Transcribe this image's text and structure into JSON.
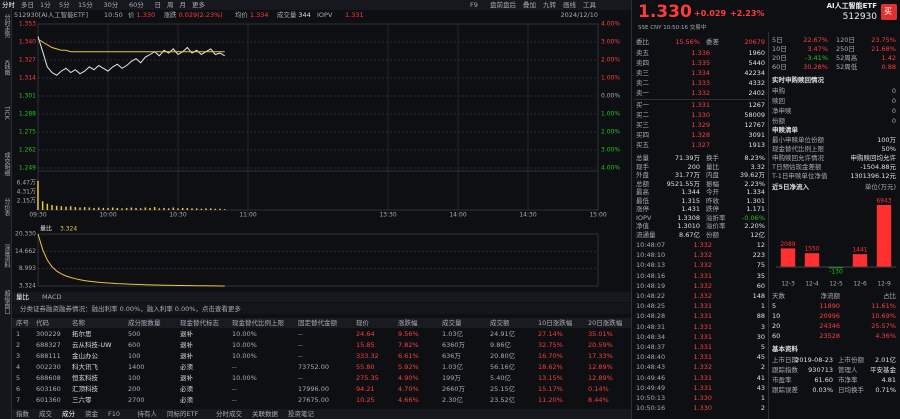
{
  "toolbar": {
    "tabs": [
      "分时",
      "多日",
      "1分",
      "5分",
      "15分",
      "30分",
      "60分",
      "日",
      "周",
      "月",
      "更多"
    ],
    "tools": [
      "F9",
      "盘前盘后",
      "叠加",
      "九转",
      "画线",
      "工具"
    ]
  },
  "sidebar": [
    "分时走势",
    "K线图",
    "TICK",
    "成交明细",
    "分价表",
    "深度资料",
    "超级盘口"
  ],
  "quote_line": {
    "security": "512930[AI人工智能ETF]",
    "time": "10:50",
    "items": [
      {
        "label": "价",
        "value": "1.330"
      },
      {
        "label": "涨跌",
        "value": "0.029(2.23%)"
      },
      {
        "label": "均价",
        "value": "1.334"
      },
      {
        "label": "成交量",
        "value": "344"
      },
      {
        "label": "IOPV",
        "value": "1.331"
      }
    ],
    "date": "2024/12/10"
  },
  "chart_data": [
    {
      "type": "line",
      "grid": true,
      "x": [
        "09:30",
        "09:32",
        "09:34",
        "09:36",
        "09:38",
        "09:40",
        "09:42",
        "09:44",
        "09:46",
        "09:48",
        "09:50",
        "09:52",
        "09:54",
        "09:56",
        "09:58",
        "10:00",
        "10:02",
        "10:04",
        "10:06",
        "10:08",
        "10:10",
        "10:12",
        "10:14",
        "10:16",
        "10:18",
        "10:20",
        "10:22",
        "10:24",
        "10:26",
        "10:28",
        "10:30",
        "10:32",
        "10:34",
        "10:36",
        "10:38",
        "10:40",
        "10:42",
        "10:44",
        "10:46",
        "10:48",
        "10:50"
      ],
      "xlim": [
        "09:30",
        "15:00"
      ],
      "xticks": [
        "09:30",
        "10:00",
        "10:30",
        "11:00",
        "13:30",
        "14:00",
        "14:30",
        "15:00"
      ],
      "ylim": [
        1.249,
        1.353
      ],
      "yticks": [
        1.353,
        {
          "value": 1.34,
          "label": "1.340"
        },
        1.327,
        1.314,
        1.301,
        1.288,
        1.275,
        1.262,
        1.249
      ],
      "y2lim": [
        -4,
        4
      ],
      "y2ticks": [
        {
          "value": 4,
          "label": "4.00%"
        },
        {
          "value": 3,
          "label": "3.00%"
        },
        {
          "value": 2,
          "label": "2.00%"
        },
        {
          "value": 1,
          "label": "1.00%"
        },
        {
          "value": 0,
          "label": "0.00%"
        },
        {
          "value": -1,
          "label": "1.00%"
        },
        {
          "value": -2,
          "label": "2.00%"
        },
        {
          "value": -3,
          "label": "3.00%"
        },
        {
          "value": -4,
          "label": "4.00%"
        }
      ],
      "series": [
        {
          "color": "#e6e6e6",
          "values": [
            1.344,
            1.333,
            1.322,
            1.318,
            1.316,
            1.319,
            1.321,
            1.318,
            1.32,
            1.317,
            1.319,
            1.322,
            1.32,
            1.323,
            1.321,
            1.319,
            1.322,
            1.324,
            1.321,
            1.323,
            1.326,
            1.328,
            1.325,
            1.329,
            1.331,
            1.333,
            1.33,
            1.334,
            1.332,
            1.335,
            1.331,
            1.333,
            1.336,
            1.332,
            1.334,
            1.331,
            1.333,
            1.335,
            1.331,
            1.332,
            1.33
          ]
        },
        {
          "color": "#e8c542",
          "values": [
            1.342,
            1.34,
            1.338,
            1.336,
            1.335,
            1.334,
            1.334,
            1.333,
            1.333,
            1.333,
            1.333,
            1.333,
            1.333,
            1.333,
            1.333,
            1.333,
            1.333,
            1.333,
            1.333,
            1.333,
            1.333,
            1.333,
            1.333,
            1.333,
            1.333,
            1.333,
            1.333,
            1.333,
            1.333,
            1.333,
            1.333,
            1.333,
            1.333,
            1.333,
            1.333,
            1.333,
            1.333,
            1.333,
            1.333,
            1.333,
            1.333
          ]
        }
      ],
      "volume": {
        "color": "#e8c542",
        "ylim": [
          0,
          8.63
        ],
        "yticks": [
          {
            "value": 6.47,
            "label": "6.47万"
          },
          {
            "value": 4.31,
            "label": "4.31万"
          },
          {
            "value": 2.15,
            "label": "2.15万"
          }
        ],
        "values": [
          7.0,
          2.1,
          1.5,
          1.2,
          1.0,
          0.9,
          0.8,
          0.9,
          0.7,
          0.6,
          0.7,
          0.6,
          0.5,
          0.6,
          0.5,
          0.5,
          0.6,
          0.5,
          0.4,
          0.5,
          0.6,
          0.5,
          0.4,
          0.6,
          0.5,
          0.7,
          0.4,
          0.5,
          0.4,
          0.6,
          0.4,
          0.5,
          0.5,
          0.4,
          0.4,
          0.3,
          0.4,
          0.4,
          0.3,
          0.3,
          0.2
        ]
      }
    },
    {
      "type": "line",
      "title": "量比",
      "x": [
        "09:30",
        "09:32",
        "09:34",
        "09:36",
        "09:38",
        "09:40",
        "09:42",
        "09:44",
        "09:46",
        "09:48",
        "09:50",
        "09:52",
        "09:54",
        "09:56",
        "09:58",
        "10:00",
        "10:02",
        "10:04",
        "10:06",
        "10:08",
        "10:10",
        "10:12",
        "10:14",
        "10:16",
        "10:18",
        "10:20",
        "10:22",
        "10:24",
        "10:26",
        "10:28",
        "10:30",
        "10:32",
        "10:34",
        "10:36",
        "10:38",
        "10:40",
        "10:42",
        "10:44",
        "10:46",
        "10:48",
        "10:50"
      ],
      "xlim": [
        "09:30",
        "15:00"
      ],
      "ylim": [
        3.324,
        20.33
      ],
      "yticks": [
        {
          "value": 20.33,
          "label": "20.330"
        },
        14.662,
        8.993,
        3.324
      ],
      "series": [
        {
          "color": "#e8c542",
          "values": [
            20.33,
            15.2,
            11.8,
            9.6,
            8.2,
            7.3,
            6.6,
            6.1,
            5.7,
            5.4,
            5.1,
            4.9,
            4.7,
            4.55,
            4.42,
            4.3,
            4.2,
            4.12,
            4.04,
            3.97,
            3.9,
            3.85,
            3.8,
            3.75,
            3.7,
            3.66,
            3.62,
            3.59,
            3.56,
            3.53,
            3.5,
            3.48,
            3.46,
            3.44,
            3.42,
            3.4,
            3.38,
            3.36,
            3.35,
            3.34,
            3.324
          ]
        }
      ]
    },
    {
      "type": "bar",
      "title": "近5日净流入",
      "unit": "单位(万元)",
      "categories": [
        "12-3",
        "12-4",
        "12-5",
        "12-6",
        "12-9"
      ],
      "values": [
        2089,
        1550,
        -130,
        1441,
        6943
      ],
      "ylim": [
        -1000,
        7500
      ],
      "colors": {
        "up": "#ff3030",
        "down": "#19c219"
      }
    }
  ],
  "indicator_tabs": [
    "量比",
    "MACD"
  ],
  "notice": "分类证券融资融券情况：融出利率 0.00%，融入利率 0.00%，点击查看更多",
  "table": {
    "headers": [
      "序号",
      "代码",
      "名称",
      "成分股数量",
      "现金替代标志",
      "现金替代比例上限",
      "固定替代金额",
      "现价",
      "涨跌幅",
      "成交量",
      "成交额",
      "10日涨跌幅",
      "20日涨跌幅"
    ],
    "rows": [
      [
        "1",
        "300229",
        "拓尔思",
        "500",
        "退补",
        "10.00%",
        "--",
        "24.64",
        "9.56%",
        "1.03亿",
        "24.91亿",
        "27.14%",
        "35.01%"
      ],
      [
        "2",
        "688327",
        "云从科技-UW",
        "600",
        "退补",
        "10.00%",
        "--",
        "15.85",
        "7.82%",
        "6360万",
        "9.86亿",
        "32.75%",
        "20.59%"
      ],
      [
        "3",
        "688111",
        "金山办公",
        "100",
        "退补",
        "10.00%",
        "--",
        "333.32",
        "6.61%",
        "636万",
        "20.80亿",
        "16.70%",
        "17.33%"
      ],
      [
        "4",
        "002230",
        "科大讯飞",
        "1400",
        "必须",
        "--",
        "73752.00",
        "55.80",
        "5.92%",
        "1.03亿",
        "56.16亿",
        "18.62%",
        "12.89%"
      ],
      [
        "5",
        "688608",
        "恒玄科技",
        "100",
        "退补",
        "10.00%",
        "--",
        "275.35",
        "4.90%",
        "199万",
        "5.40亿",
        "13.15%",
        "12.89%"
      ],
      [
        "6",
        "603160",
        "汇顶科技",
        "200",
        "必须",
        "--",
        "17996.00",
        "94.21",
        "4.70%",
        "2660万",
        "25.15亿",
        "15.17%",
        "0.14%"
      ],
      [
        "7",
        "601360",
        "三六零",
        "2700",
        "必须",
        "--",
        "27675.00",
        "10.25",
        "4.66%",
        "2.30亿",
        "23.52亿",
        "11.20%",
        "8.44%"
      ]
    ]
  },
  "bottom_tabs": [
    "指数",
    "成交",
    "成分",
    "资金",
    "F10",
    "持有人",
    "同标的ETF",
    "分时成交",
    "关联数据",
    "投资笔记"
  ],
  "quote": {
    "name": "AI人工智能ETF",
    "code": "512930",
    "price": "1.330",
    "change": "+0.029",
    "pct": "+2.23%",
    "buy": "买",
    "status": "SSE CNY 10:50:16 交易中"
  },
  "order_ratio": [
    "委比",
    "15.56%",
    "委差",
    "20679"
  ],
  "order_book": [
    [
      "卖五",
      "1.336",
      "1960"
    ],
    [
      "卖四",
      "1.335",
      "5440"
    ],
    [
      "卖三",
      "1.334",
      "42234"
    ],
    [
      "卖二",
      "1.333",
      "4332"
    ],
    [
      "卖一",
      "1.332",
      "2402"
    ],
    [
      "买一",
      "1.331",
      "1267"
    ],
    [
      "买二",
      "1.330",
      "58009"
    ],
    [
      "买三",
      "1.329",
      "12767"
    ],
    [
      "买四",
      "1.328",
      "3091"
    ],
    [
      "买五",
      "1.327",
      "1913"
    ]
  ],
  "stats": [
    [
      "总量",
      "71.39万",
      "换手",
      "8.23%"
    ],
    [
      "现手",
      "200",
      "量比",
      "3.32"
    ],
    [
      "外盘",
      "31.77万",
      "内盘",
      "39.62万"
    ],
    [
      "总额",
      "9521.55万",
      "振幅",
      "2.23%"
    ],
    [
      "最高",
      "1.344",
      "今开",
      "1.334"
    ],
    [
      "最低",
      "1.315",
      "昨收",
      "1.301"
    ],
    [
      "涨停",
      "1.431",
      "跌停",
      "1.171"
    ],
    [
      "IOPV",
      "1.3308",
      "溢折率",
      "-0.06%"
    ],
    [
      "净值",
      "1.3010",
      "溢价率",
      "2.20%"
    ],
    [
      "流通量",
      "8.67亿",
      "份额",
      "12亿"
    ]
  ],
  "trades": [
    [
      "10:48:07",
      "1.332",
      "12"
    ],
    [
      "10:48:10",
      "1.332",
      "223"
    ],
    [
      "10:48:13",
      "1.332",
      "75"
    ],
    [
      "10:48:16",
      "1.331",
      "35"
    ],
    [
      "10:48:19",
      "1.332",
      "60"
    ],
    [
      "10:48:22",
      "1.332",
      "148"
    ],
    [
      "10:48:25",
      "1.331",
      "1"
    ],
    [
      "10:48:28",
      "1.331",
      "88"
    ],
    [
      "10:48:31",
      "1.331",
      "3"
    ],
    [
      "10:48:34",
      "1.331",
      "30"
    ],
    [
      "10:48:37",
      "1.331",
      "5"
    ],
    [
      "10:48:40",
      "1.331",
      "45"
    ],
    [
      "10:48:43",
      "1.332",
      "2"
    ],
    [
      "10:49:46",
      "1.331",
      "41"
    ],
    [
      "10:49:49",
      "1.331",
      "43"
    ],
    [
      "10:50:13",
      "1.330",
      "1"
    ],
    [
      "10:50:16",
      "1.330",
      "2"
    ]
  ],
  "performance": [
    [
      "5日",
      "22.67%",
      "120日",
      "23.75%"
    ],
    [
      "10日",
      "3.47%",
      "250日",
      "21.68%"
    ],
    [
      "20日",
      "-3.41%",
      "52周高",
      "1.42"
    ],
    [
      "60日",
      "30.28%",
      "52周低",
      "0.88"
    ]
  ],
  "realtime": {
    "title": "实时申购赎回情况",
    "rows": [
      [
        "申购",
        "0"
      ],
      [
        "赎回",
        "0"
      ],
      [
        "净申赎",
        "0"
      ],
      [
        "份额",
        "0"
      ]
    ]
  },
  "creation": {
    "title": "申赎清单",
    "rows": [
      [
        "最小申赎单位份额",
        "100万"
      ],
      [
        "现金替代比例上限",
        "50%"
      ],
      [
        "申购赎回允许情况",
        "申购赎回均允许"
      ],
      [
        "T日预估现金差额",
        "-1504.88元"
      ],
      [
        "T-1日申赎单位净值",
        "1301396.12元"
      ]
    ]
  },
  "flow_table": {
    "headers": [
      "天数",
      "净流额",
      "占比"
    ],
    "rows": [
      [
        "5",
        "11890",
        "11.61%"
      ],
      [
        "10",
        "20996",
        "10.69%"
      ],
      [
        "20",
        "24346",
        "25.57%"
      ],
      [
        "60",
        "23528",
        "4.36%"
      ]
    ]
  },
  "basic": {
    "title": "基本资料",
    "rows": [
      [
        "上市日期",
        "2019-08-23",
        "上市份额",
        "2.01亿"
      ],
      [
        "跟踪指数",
        "930713",
        "管理人",
        "平安基金"
      ],
      [
        "市盈率",
        "61.60",
        "市净率",
        "4.81"
      ],
      [
        "跟踪误差",
        "0.03%",
        "日均换手",
        "0.71%"
      ]
    ]
  }
}
